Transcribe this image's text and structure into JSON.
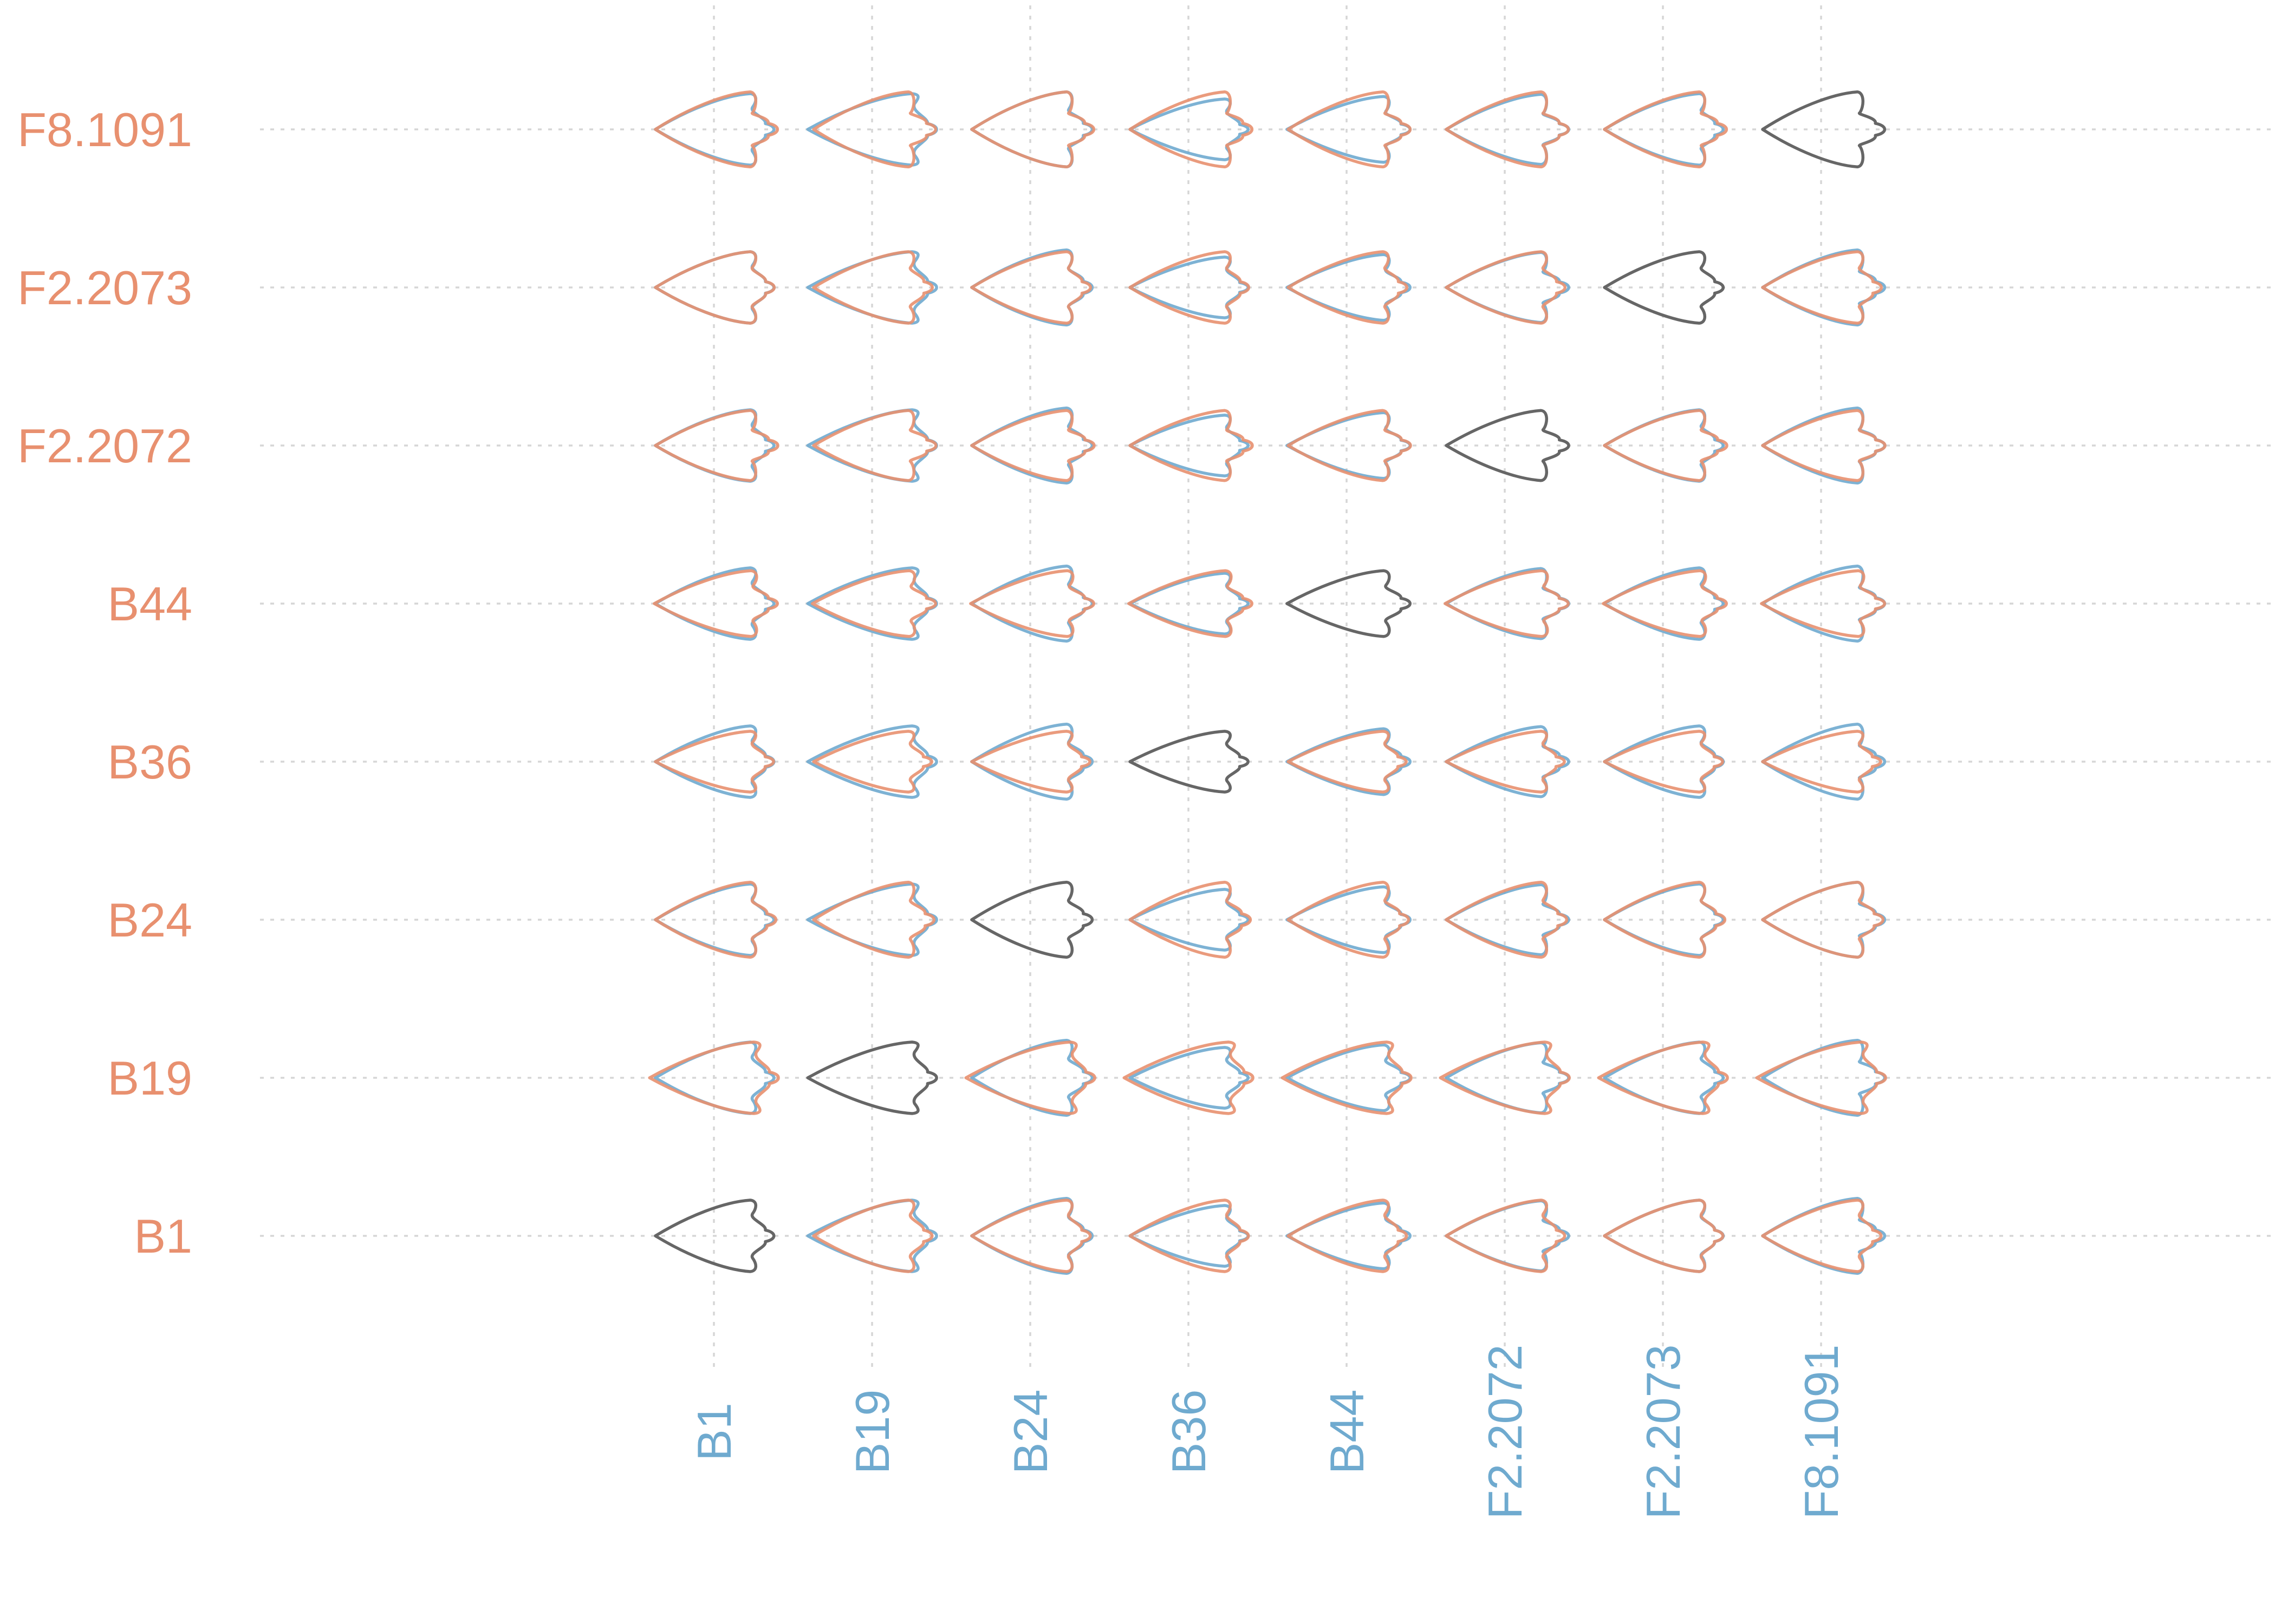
{
  "chart_data": {
    "type": "matrix",
    "rows": [
      "B1",
      "B19",
      "B24",
      "B36",
      "B44",
      "F2.2072",
      "F2.2073",
      "F8.1091"
    ],
    "columns": [
      "B1",
      "B19",
      "B24",
      "B36",
      "B44",
      "F2.2072",
      "F2.2073",
      "F8.1091"
    ],
    "grid": true,
    "colors": {
      "row_specimen": "#E8906F",
      "column_specimen": "#6FAACF",
      "self": "#666666",
      "grid": "#d6d6d6"
    },
    "shapes": {
      "B1": {
        "length": 1.0,
        "width": 1.0,
        "shoulder": 0.9,
        "notch": 0.18
      },
      "B19": {
        "length": 1.1,
        "width": 1.0,
        "shoulder": 1.0,
        "notch": 0.1
      },
      "B24": {
        "length": 1.0,
        "width": 1.05,
        "shoulder": 0.82,
        "notch": 0.3
      },
      "B36": {
        "length": 1.0,
        "width": 0.85,
        "shoulder": 0.92,
        "notch": 0.16
      },
      "B44": {
        "length": 1.02,
        "width": 0.92,
        "shoulder": 0.84,
        "notch": 0.32
      },
      "F2.2072": {
        "length": 1.0,
        "width": 0.98,
        "shoulder": 0.74,
        "notch": 0.42
      },
      "F2.2073": {
        "length": 1.0,
        "width": 1.0,
        "shoulder": 0.85,
        "notch": 0.2
      },
      "F8.1091": {
        "length": 1.0,
        "width": 1.05,
        "shoulder": 0.72,
        "notch": 0.4
      }
    }
  }
}
